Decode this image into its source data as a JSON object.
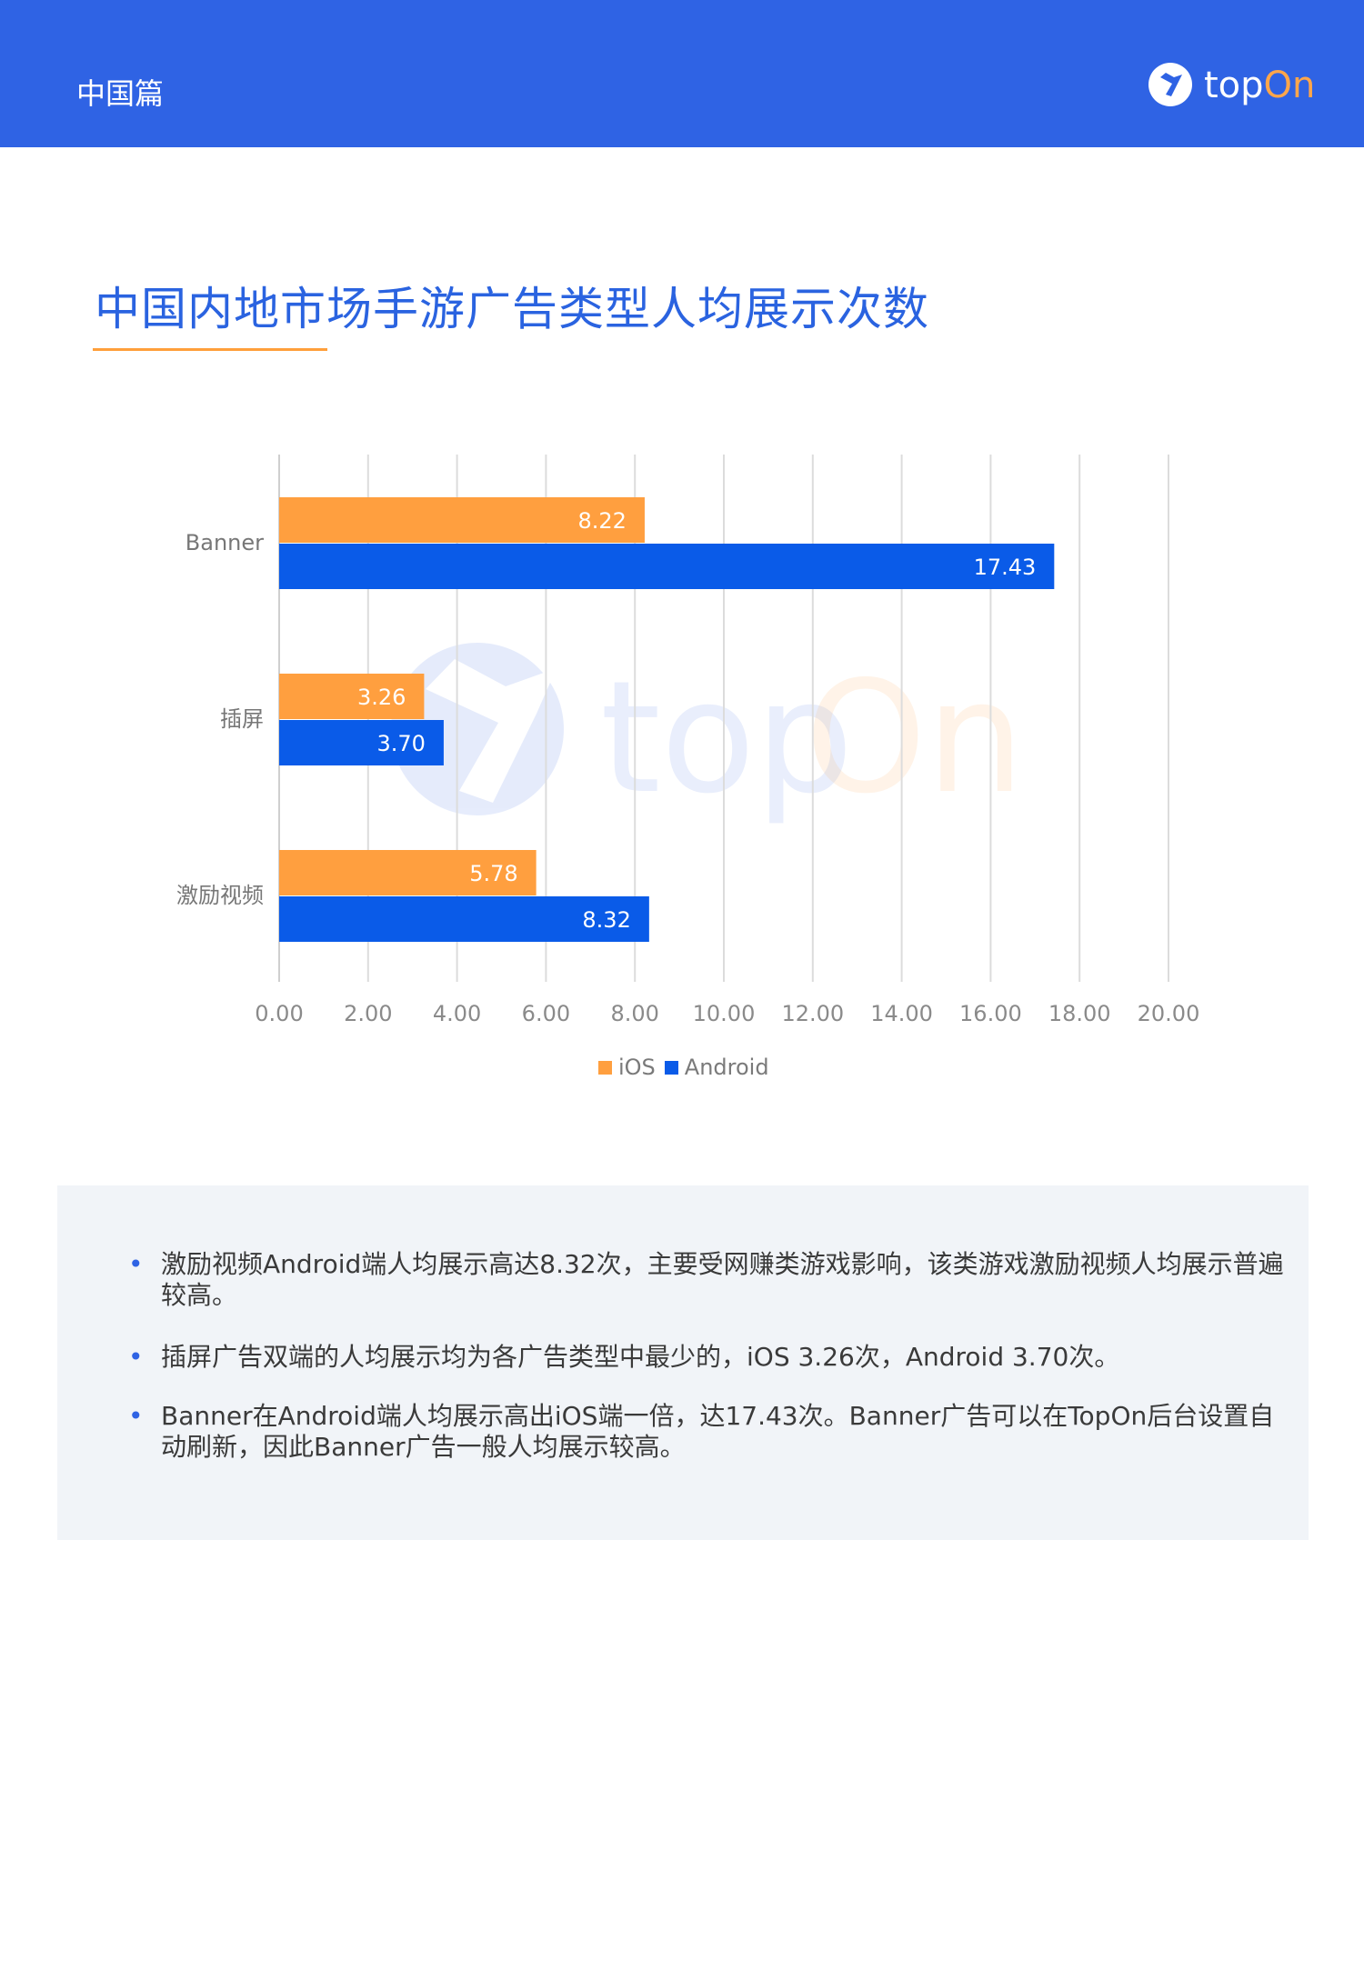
{
  "header": {
    "section_label": "中国篇",
    "logo": {
      "text_top": "top",
      "text_on": "On",
      "icon": "topon-logo-icon"
    },
    "background_color": "#2f63e4"
  },
  "title": "中国内地市场手游广告类型人均展示次数",
  "chart_data": {
    "type": "bar",
    "orientation": "horizontal",
    "categories": [
      "Banner",
      "插屏",
      "激励视频"
    ],
    "series": [
      {
        "name": "iOS",
        "color": "#ff9f3f",
        "values": [
          8.22,
          3.26,
          5.78
        ],
        "labels": [
          "8.22",
          "3.26",
          "5.78"
        ]
      },
      {
        "name": "Android",
        "color": "#0a5be8",
        "values": [
          17.43,
          3.7,
          8.32
        ],
        "labels": [
          "17.43",
          "3.70",
          "8.32"
        ]
      }
    ],
    "xlim": [
      0,
      20
    ],
    "xticks": [
      "0.00",
      "2.00",
      "4.00",
      "6.00",
      "8.00",
      "10.00",
      "12.00",
      "14.00",
      "16.00",
      "18.00",
      "20.00"
    ],
    "grid": true,
    "legend_position": "bottom"
  },
  "notes": [
    "激励视频Android端人均展示高达8.32次，主要受网赚类游戏影响，该类游戏激励视频人均展示普遍较高。",
    "插屏广告双端的人均展示均为各广告类型中最少的，iOS 3.26次，Android 3.70次。",
    "Banner在Android端人均展示高出iOS端一倍，达17.43次。Banner广告可以在TopOn后台设置自动刷新，因此Banner广告一般人均展示较高。"
  ]
}
